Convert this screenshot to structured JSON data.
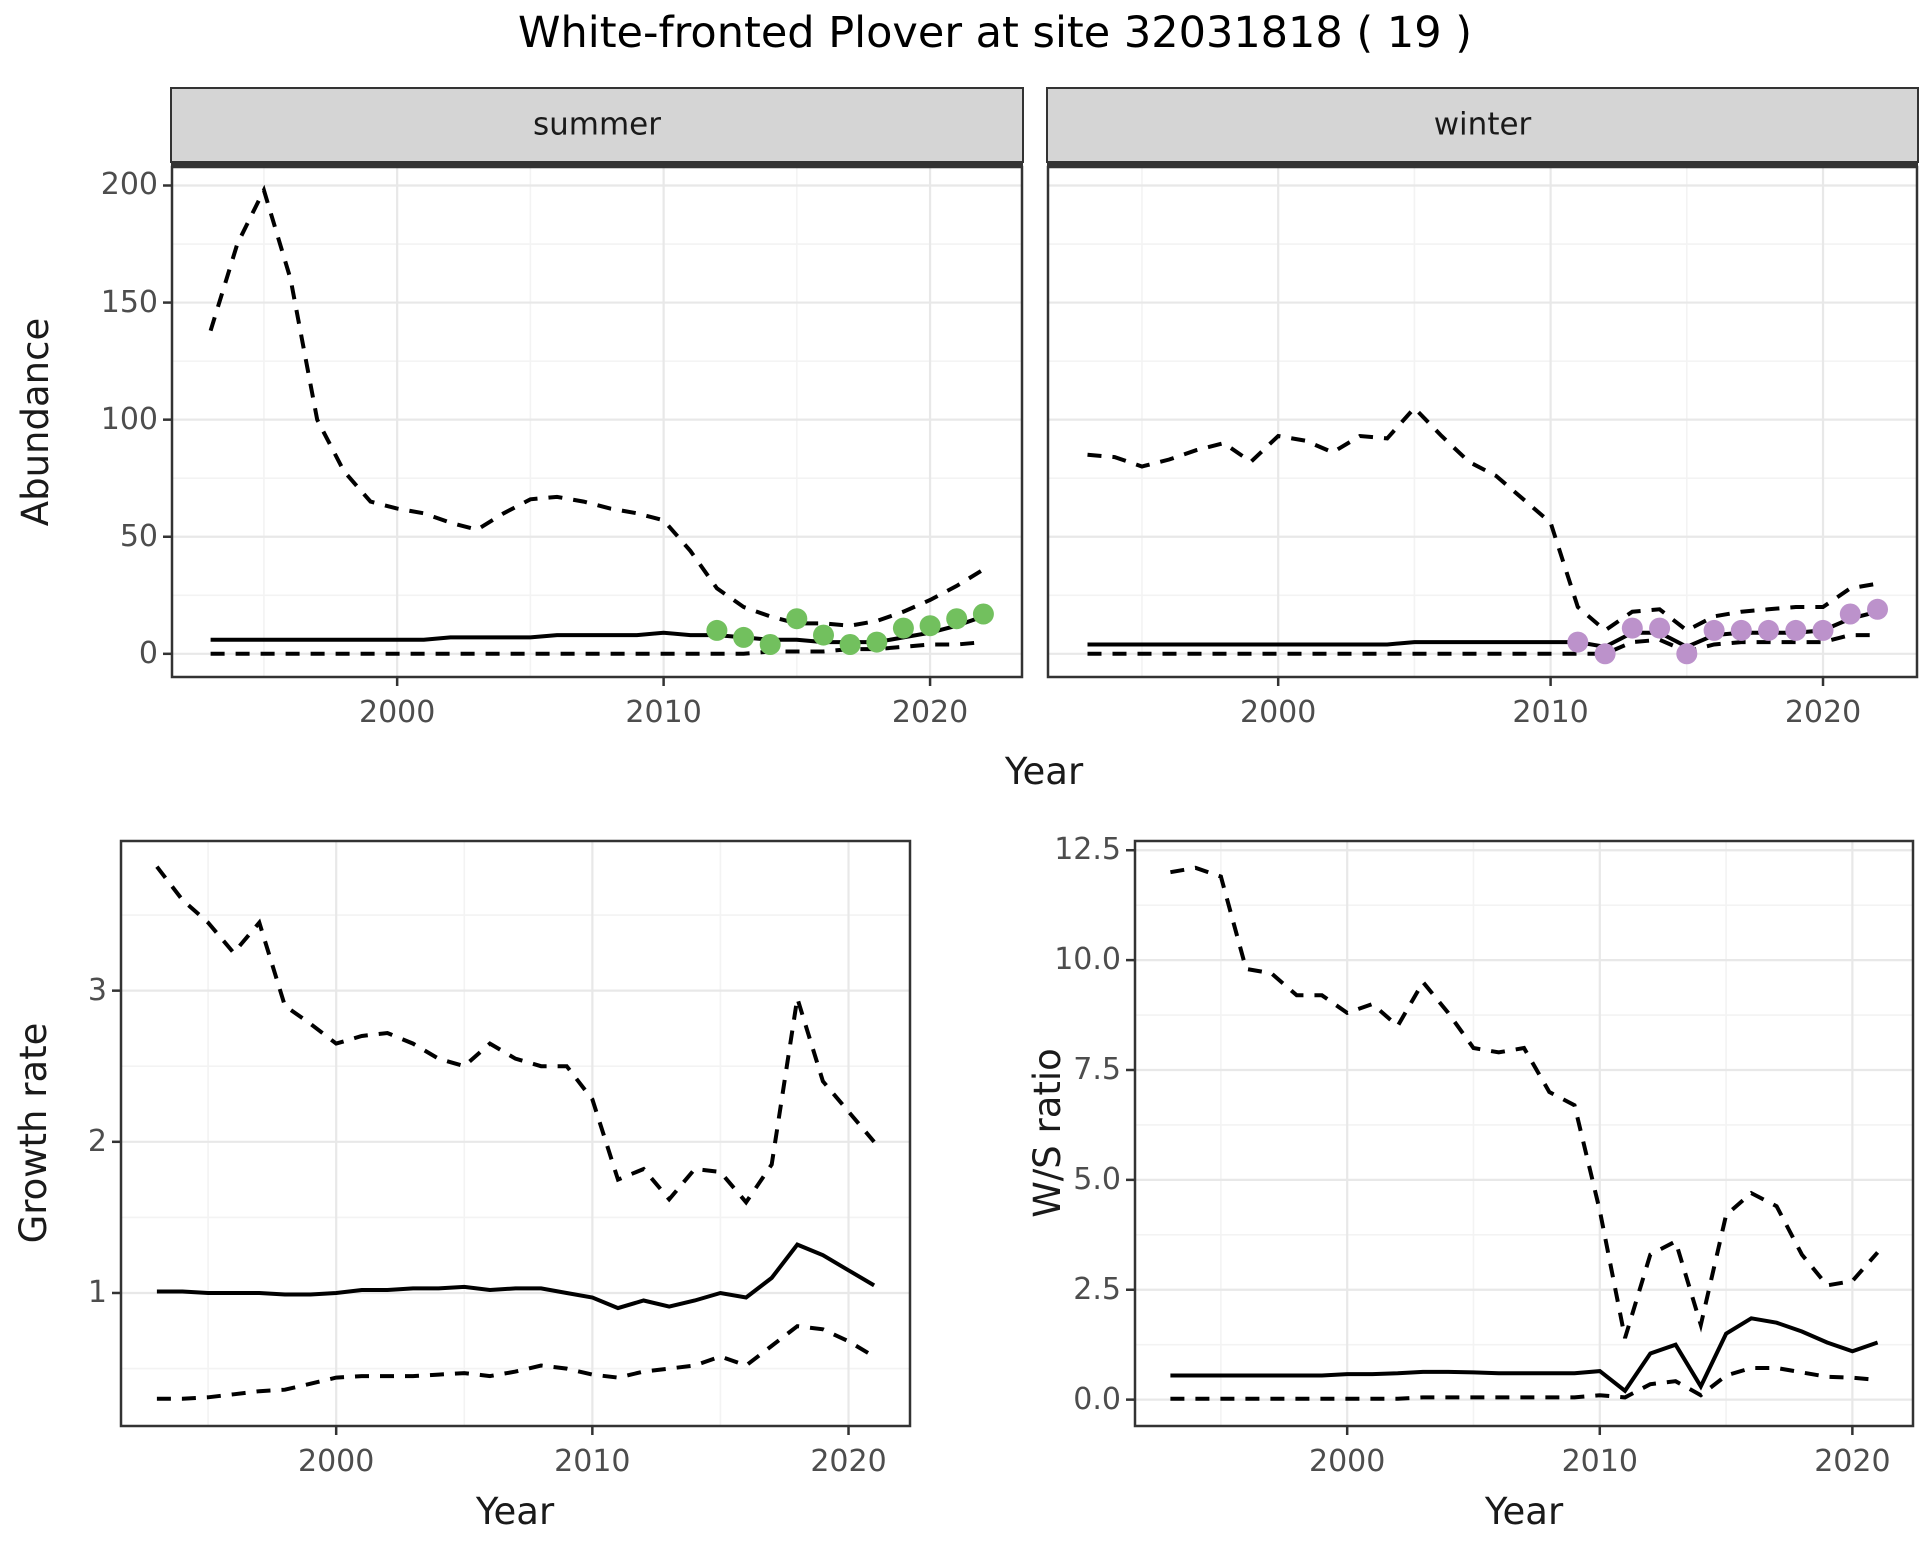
{
  "title": "White-fronted Plover at site 32031818 ( 19 )",
  "axis_labels": {
    "abundance": "Abundance",
    "year": "Year",
    "growth_rate": "Growth rate",
    "ws_ratio": "W/S ratio"
  },
  "facets": [
    "summer",
    "winter"
  ],
  "colors": {
    "summer_points": "#72c05e",
    "winter_points": "#bc92cb",
    "line": "#000000",
    "strip_bg": "#d5d5d5",
    "strip_border": "#333333",
    "panel_border": "#333333",
    "grid_major": "#e8e8e8",
    "grid_minor": "#f3f3f3",
    "tick_text": "#4d4d4d"
  },
  "chart_data": [
    {
      "id": "abundance-summer",
      "type": "line",
      "facet": "summer",
      "ylabel": "Abundance",
      "xlabel": "Year",
      "xlim": [
        1991.55,
        2023.45
      ],
      "ylim": [
        -9.9,
        207.9
      ],
      "xticks": {
        "values": [
          2000,
          2010,
          2020
        ],
        "labels": [
          "2000",
          "2010",
          "2020"
        ]
      },
      "yticks": {
        "values": [
          0,
          50,
          100,
          150,
          200
        ],
        "labels": [
          "0",
          "50",
          "100",
          "150",
          "200"
        ]
      },
      "show_y_tick_labels": true,
      "x": [
        1993,
        1994,
        1995,
        1996,
        1997,
        1998,
        1999,
        2000,
        2001,
        2002,
        2003,
        2004,
        2005,
        2006,
        2007,
        2008,
        2009,
        2010,
        2011,
        2012,
        2013,
        2014,
        2015,
        2016,
        2017,
        2018,
        2019,
        2020,
        2021,
        2022
      ],
      "series": [
        {
          "name": "upper_95ci",
          "style": "dashed",
          "values": [
            138,
            175,
            198,
            160,
            100,
            78,
            65,
            62,
            60,
            56,
            53,
            60,
            66,
            67,
            65,
            62,
            60,
            57,
            44,
            28,
            20,
            16,
            13,
            13,
            12,
            14,
            18,
            23,
            29,
            36
          ]
        },
        {
          "name": "estimate",
          "style": "solid",
          "values": [
            6,
            6,
            6,
            6,
            6,
            6,
            6,
            6,
            6,
            7,
            7,
            7,
            7,
            8,
            8,
            8,
            8,
            9,
            8,
            8,
            7,
            6,
            6,
            5,
            5,
            5,
            7,
            9,
            12,
            16
          ]
        },
        {
          "name": "lower_95ci",
          "style": "dashed",
          "values": [
            0,
            0,
            0,
            0,
            0,
            0,
            0,
            0,
            0,
            0,
            0,
            0,
            0,
            0,
            0,
            0,
            0,
            0,
            0,
            0,
            0,
            1,
            1,
            1,
            2,
            2,
            3,
            4,
            4,
            5
          ]
        }
      ],
      "points": {
        "name": "observed_counts",
        "color": "#72c05e",
        "x": [
          2012,
          2013,
          2014,
          2015,
          2016,
          2017,
          2018,
          2019,
          2020,
          2021,
          2022
        ],
        "y": [
          10,
          7,
          4,
          15,
          8,
          4,
          5,
          11,
          12,
          15,
          17
        ]
      }
    },
    {
      "id": "abundance-winter",
      "type": "line",
      "facet": "winter",
      "ylabel": "Abundance",
      "xlabel": "Year",
      "xlim": [
        1991.55,
        2023.45
      ],
      "ylim": [
        -9.9,
        207.9
      ],
      "xticks": {
        "values": [
          2000,
          2010,
          2020
        ],
        "labels": [
          "2000",
          "2010",
          "2020"
        ]
      },
      "yticks": {
        "values": [
          0,
          50,
          100,
          150,
          200
        ],
        "labels": [
          "0",
          "50",
          "100",
          "150",
          "200"
        ]
      },
      "show_y_tick_labels": false,
      "x": [
        1993,
        1994,
        1995,
        1996,
        1997,
        1998,
        1999,
        2000,
        2001,
        2002,
        2003,
        2004,
        2005,
        2006,
        2007,
        2008,
        2009,
        2010,
        2011,
        2012,
        2013,
        2014,
        2015,
        2016,
        2017,
        2018,
        2019,
        2020,
        2021,
        2022
      ],
      "series": [
        {
          "name": "upper_95ci",
          "style": "dashed",
          "values": [
            85,
            84,
            80,
            83,
            87,
            90,
            82,
            93,
            91,
            86,
            93,
            92,
            105,
            93,
            82,
            76,
            66,
            56,
            20,
            10,
            18,
            19,
            10,
            16,
            18,
            19,
            20,
            20,
            28,
            30
          ]
        },
        {
          "name": "estimate",
          "style": "solid",
          "values": [
            4,
            4,
            4,
            4,
            4,
            4,
            4,
            4,
            4,
            4,
            4,
            4,
            5,
            5,
            5,
            5,
            5,
            5,
            5,
            3,
            9,
            9,
            3,
            8,
            9,
            9,
            9,
            10,
            15,
            18
          ]
        },
        {
          "name": "lower_95ci",
          "style": "dashed",
          "values": [
            0,
            0,
            0,
            0,
            0,
            0,
            0,
            0,
            0,
            0,
            0,
            0,
            0,
            0,
            0,
            0,
            0,
            0,
            0,
            0,
            5,
            6,
            1,
            4,
            5,
            5,
            5,
            5,
            8,
            8
          ]
        }
      ],
      "points": {
        "name": "observed_counts",
        "color": "#bc92cb",
        "x": [
          2011,
          2012,
          2013,
          2014,
          2015,
          2016,
          2017,
          2018,
          2019,
          2020,
          2021,
          2022
        ],
        "y": [
          5,
          0,
          11,
          11,
          0,
          10,
          10,
          10,
          10,
          10,
          17,
          19
        ]
      }
    },
    {
      "id": "growth-rate",
      "type": "line",
      "facet": null,
      "ylabel": "Growth rate",
      "xlabel": "Year",
      "xlim": [
        1991.6,
        2022.4
      ],
      "ylim": [
        0.12,
        3.99
      ],
      "xticks": {
        "values": [
          2000,
          2010,
          2020
        ],
        "labels": [
          "2000",
          "2010",
          "2020"
        ]
      },
      "yticks": {
        "values": [
          1,
          2,
          3
        ],
        "labels": [
          "1",
          "2",
          "3"
        ]
      },
      "show_y_tick_labels": true,
      "x": [
        1993,
        1994,
        1995,
        1996,
        1997,
        1998,
        1999,
        2000,
        2001,
        2002,
        2003,
        2004,
        2005,
        2006,
        2007,
        2008,
        2009,
        2010,
        2011,
        2012,
        2013,
        2014,
        2015,
        2016,
        2017,
        2018,
        2019,
        2020,
        2021
      ],
      "series": [
        {
          "name": "upper_95ci",
          "style": "dashed",
          "values": [
            3.82,
            3.6,
            3.45,
            3.25,
            3.45,
            2.9,
            2.78,
            2.65,
            2.7,
            2.72,
            2.65,
            2.55,
            2.5,
            2.65,
            2.55,
            2.5,
            2.5,
            2.28,
            1.75,
            1.82,
            1.62,
            1.82,
            1.8,
            1.6,
            1.85,
            2.95,
            2.4,
            2.2,
            2.0
          ]
        },
        {
          "name": "estimate",
          "style": "solid",
          "values": [
            1.01,
            1.01,
            1.0,
            1.0,
            1.0,
            0.99,
            0.99,
            1.0,
            1.02,
            1.02,
            1.03,
            1.03,
            1.04,
            1.02,
            1.03,
            1.03,
            1.0,
            0.97,
            0.9,
            0.95,
            0.91,
            0.95,
            1.0,
            0.97,
            1.1,
            1.32,
            1.25,
            1.15,
            1.05
          ]
        },
        {
          "name": "lower_95ci",
          "style": "dashed",
          "values": [
            0.3,
            0.3,
            0.31,
            0.33,
            0.35,
            0.36,
            0.4,
            0.44,
            0.45,
            0.45,
            0.45,
            0.46,
            0.47,
            0.45,
            0.48,
            0.52,
            0.5,
            0.46,
            0.44,
            0.48,
            0.5,
            0.52,
            0.58,
            0.52,
            0.65,
            0.78,
            0.76,
            0.68,
            0.58
          ]
        }
      ],
      "points": null
    },
    {
      "id": "ws-ratio",
      "type": "line",
      "facet": null,
      "ylabel": "W/S ratio",
      "xlabel": "Year",
      "xlim": [
        1991.6,
        2022.4
      ],
      "ylim": [
        -0.6,
        12.71
      ],
      "xticks": {
        "values": [
          2000,
          2010,
          2020
        ],
        "labels": [
          "2000",
          "2010",
          "2020"
        ]
      },
      "yticks": {
        "values": [
          0,
          2.5,
          5,
          7.5,
          10,
          12.5
        ],
        "labels": [
          "0.0",
          "2.5",
          "5.0",
          "7.5",
          "10.0",
          "12.5"
        ]
      },
      "show_y_tick_labels": true,
      "x": [
        1993,
        1994,
        1995,
        1996,
        1997,
        1998,
        1999,
        2000,
        2001,
        2002,
        2003,
        2004,
        2005,
        2006,
        2007,
        2008,
        2009,
        2010,
        2011,
        2012,
        2013,
        2014,
        2015,
        2016,
        2017,
        2018,
        2019,
        2020,
        2021
      ],
      "series": [
        {
          "name": "upper_95ci",
          "style": "dashed",
          "values": [
            12.0,
            12.1,
            11.9,
            9.8,
            9.7,
            9.2,
            9.2,
            8.8,
            9.0,
            8.5,
            9.5,
            8.8,
            8.0,
            7.9,
            8.0,
            7.0,
            6.7,
            4.3,
            1.4,
            3.3,
            3.6,
            1.7,
            4.2,
            4.7,
            4.4,
            3.3,
            2.6,
            2.7,
            3.35
          ]
        },
        {
          "name": "estimate",
          "style": "solid",
          "values": [
            0.55,
            0.55,
            0.55,
            0.55,
            0.55,
            0.55,
            0.55,
            0.58,
            0.58,
            0.6,
            0.63,
            0.63,
            0.62,
            0.6,
            0.6,
            0.6,
            0.6,
            0.65,
            0.2,
            1.05,
            1.25,
            0.3,
            1.5,
            1.85,
            1.75,
            1.55,
            1.3,
            1.1,
            1.3
          ]
        },
        {
          "name": "lower_95ci",
          "style": "dashed",
          "values": [
            0.02,
            0.02,
            0.02,
            0.02,
            0.02,
            0.02,
            0.02,
            0.02,
            0.02,
            0.02,
            0.05,
            0.05,
            0.05,
            0.05,
            0.05,
            0.05,
            0.05,
            0.1,
            0.05,
            0.35,
            0.42,
            0.1,
            0.55,
            0.72,
            0.72,
            0.62,
            0.52,
            0.5,
            0.45
          ]
        }
      ],
      "points": null
    }
  ]
}
